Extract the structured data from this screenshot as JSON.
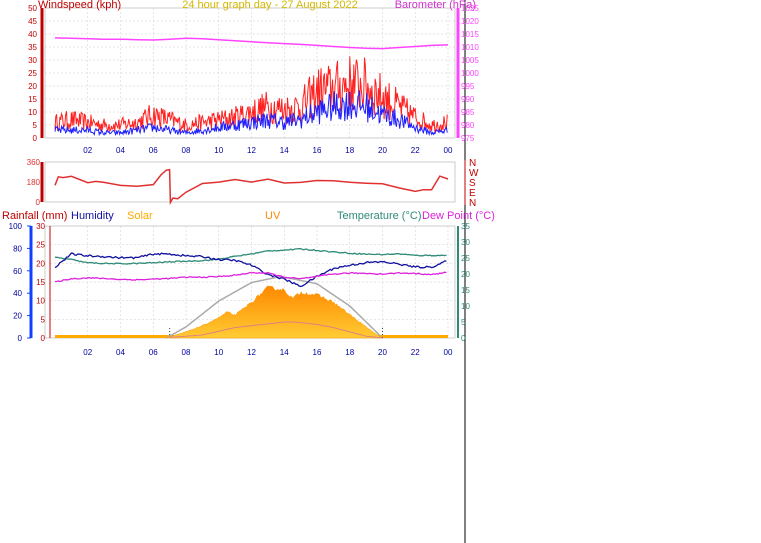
{
  "colors": {
    "wind_axis": "#c00000",
    "baro": "#ff44ff",
    "gust": "#ff2020",
    "avgwind": "#2020ff",
    "dir": "#e03030",
    "rain": "#c00000",
    "humidity": "#1010a0",
    "solar_label": "#ffaa00",
    "uv_label": "#ff8800",
    "temp": "#2e8b78",
    "dew": "#dd22dd",
    "solar_fill": "#ffaa00",
    "grid": "#cccccc"
  },
  "chart_data": [
    {
      "type": "line",
      "title": "24 hour graph day - 27 August 2022",
      "ylabel_left": "Windspeed (kph)",
      "ylabel_right": "Barometer (hPa)",
      "x_ticks": [
        "02",
        "04",
        "06",
        "08",
        "10",
        "12",
        "14",
        "16",
        "18",
        "20",
        "22",
        "00"
      ],
      "y_ticks_left": [
        "0",
        "5",
        "10",
        "15",
        "20",
        "25",
        "30",
        "35",
        "40",
        "45",
        "50"
      ],
      "y_ticks_right": [
        "975",
        "980",
        "985",
        "990",
        "995",
        "1000",
        "1005",
        "1010",
        "1015",
        "1020",
        "1025"
      ],
      "ylim_left": [
        0,
        50
      ],
      "ylim_right": [
        975,
        1025
      ],
      "grid": true,
      "series": [
        {
          "name": "Barometer",
          "axis": "right",
          "x": [
            0,
            1,
            2,
            3,
            4,
            5,
            6,
            7,
            8,
            9,
            10,
            11,
            12,
            13,
            14,
            15,
            16,
            17,
            18,
            19,
            20,
            21,
            22,
            23,
            24
          ],
          "values": [
            1013.5,
            1013.4,
            1013.2,
            1013,
            1013,
            1012.8,
            1012.7,
            1013,
            1013.4,
            1013.2,
            1012.8,
            1012.4,
            1012,
            1011.6,
            1011.3,
            1011,
            1010.6,
            1010.2,
            1009.8,
            1009.5,
            1009.4,
            1009.8,
            1010.2,
            1010.6,
            1010.8
          ]
        },
        {
          "name": "Gust",
          "axis": "left",
          "x": [
            0,
            1,
            2,
            3,
            4,
            5,
            6,
            7,
            8,
            9,
            10,
            11,
            12,
            13,
            14,
            15,
            16,
            17,
            18,
            19,
            20,
            21,
            22,
            23,
            24
          ],
          "values": [
            6,
            7,
            6,
            5,
            5,
            6,
            9,
            7,
            5,
            6,
            7,
            8,
            10,
            12,
            11,
            12,
            18,
            19,
            21,
            20,
            16,
            12,
            8,
            5,
            6
          ]
        },
        {
          "name": "Average wind",
          "axis": "left",
          "x": [
            0,
            1,
            2,
            3,
            4,
            5,
            6,
            7,
            8,
            9,
            10,
            11,
            12,
            13,
            14,
            15,
            16,
            17,
            18,
            19,
            20,
            21,
            22,
            23,
            24
          ],
          "values": [
            3,
            3,
            3,
            2,
            2,
            3,
            4,
            3,
            2,
            3,
            4,
            5,
            6,
            7,
            6,
            7,
            10,
            12,
            13,
            12,
            9,
            7,
            4,
            2,
            3
          ]
        }
      ]
    },
    {
      "type": "line",
      "y_ticks": [
        "360",
        "180",
        "0"
      ],
      "ylim": [
        0,
        360
      ],
      "right_labels": [
        "N",
        "W",
        "S",
        "E",
        "N"
      ],
      "series": [
        {
          "name": "Wind direction",
          "x": [
            0,
            0.2,
            0.5,
            1,
            2,
            2.5,
            3,
            4,
            5,
            6,
            6.5,
            6.8,
            7,
            7.05,
            7.2,
            7.5,
            8,
            9,
            10,
            11,
            12,
            13,
            14,
            15,
            16,
            17,
            18,
            19,
            20,
            21,
            22,
            22.5,
            23,
            23.5,
            24
          ],
          "values": [
            150,
            210,
            210,
            215,
            190,
            180,
            165,
            150,
            145,
            150,
            250,
            280,
            300,
            10,
            25,
            40,
            80,
            160,
            175,
            190,
            195,
            190,
            185,
            185,
            180,
            175,
            170,
            168,
            160,
            120,
            100,
            95,
            110,
            215,
            215
          ]
        }
      ]
    },
    {
      "type": "area",
      "labels": [
        "Rainfall (mm)",
        "Humidity",
        "Solar",
        "UV",
        "Temperature (°C)",
        "Dew Point (°C)"
      ],
      "y_ticks_rain": [
        "0",
        "20",
        "40",
        "60",
        "80",
        "100"
      ],
      "y_ticks_humidity": [
        "0",
        "5",
        "10",
        "15",
        "20",
        "25",
        "30"
      ],
      "y_ticks_temp": [
        "0",
        "5",
        "10",
        "15",
        "20",
        "25",
        "30",
        "35"
      ],
      "x_ticks": [
        "02",
        "04",
        "06",
        "08",
        "10",
        "12",
        "14",
        "16",
        "18",
        "20",
        "22",
        "00"
      ],
      "ylim_rain": [
        0,
        100
      ],
      "ylim_humidity": [
        0,
        30
      ],
      "ylim_temp": [
        0,
        35
      ],
      "sunrise_hour": 7,
      "sunset_hour": 20,
      "series": [
        {
          "name": "Temperature (°C)",
          "x": [
            0,
            1,
            2,
            3,
            4,
            5,
            6,
            7,
            8,
            9,
            10,
            11,
            12,
            13,
            14,
            15,
            16,
            17,
            18,
            19,
            20,
            21,
            22,
            23,
            24
          ],
          "values": [
            25.2,
            24.5,
            23.5,
            23.3,
            23.2,
            23.3,
            23.5,
            23.8,
            24,
            24.2,
            24.6,
            25.5,
            26.3,
            27.2,
            27.5,
            27.8,
            27.4,
            26.9,
            26.5,
            26.2,
            26.1,
            26.3,
            25.8,
            25.8,
            25.8
          ]
        },
        {
          "name": "Humidity",
          "x": [
            0,
            1,
            2,
            3,
            4,
            5,
            6,
            7,
            8,
            9,
            10,
            11,
            12,
            13,
            14,
            15,
            16,
            17,
            18,
            19,
            20,
            21,
            22,
            23,
            24
          ],
          "values": [
            19,
            22.5,
            22,
            21.8,
            21.5,
            21.5,
            22.5,
            22.5,
            22,
            21.8,
            21,
            20.8,
            19.5,
            17,
            15.8,
            13.8,
            16.5,
            18.6,
            19.5,
            20.2,
            20.4,
            19.8,
            19,
            19,
            20.8
          ]
        },
        {
          "name": "Dew Point (°C)",
          "x": [
            0,
            1,
            2,
            3,
            4,
            5,
            6,
            7,
            8,
            9,
            10,
            11,
            12,
            13,
            14,
            15,
            16,
            17,
            18,
            19,
            20,
            21,
            22,
            23,
            24
          ],
          "values": [
            17.5,
            18.5,
            18.8,
            18.6,
            18.3,
            18.2,
            18.4,
            18.6,
            19,
            19,
            19.2,
            19.6,
            20.4,
            20.3,
            19,
            18.5,
            19.2,
            20,
            20.3,
            20.2,
            20,
            20.3,
            20.2,
            19.8,
            20.6
          ]
        },
        {
          "name": "Solar",
          "x": [
            6.8,
            7,
            8,
            9,
            10,
            10.5,
            11,
            12,
            13,
            13.5,
            14,
            14.5,
            15,
            16,
            17,
            18,
            19,
            19.8,
            20
          ],
          "values": [
            0,
            2,
            10,
            20,
            33,
            42,
            37,
            58,
            82,
            80,
            78,
            64,
            74,
            70,
            58,
            38,
            18,
            3,
            0
          ],
          "unit": "% of plot height"
        },
        {
          "name": "Theoretical solar",
          "x": [
            6.8,
            8,
            10,
            12,
            13.8,
            16,
            18,
            20
          ],
          "values": [
            0,
            18,
            60,
            90,
            100,
            88,
            52,
            0
          ],
          "unit": "% of plot height"
        },
        {
          "name": "UV",
          "x": [
            7,
            9,
            11,
            12,
            13,
            14,
            14.5,
            15,
            16,
            17,
            18,
            19,
            20
          ],
          "values": [
            1,
            5,
            17,
            20,
            23,
            26,
            26,
            25,
            22,
            17,
            10,
            3,
            0
          ],
          "unit": "% of plot height"
        }
      ]
    }
  ]
}
